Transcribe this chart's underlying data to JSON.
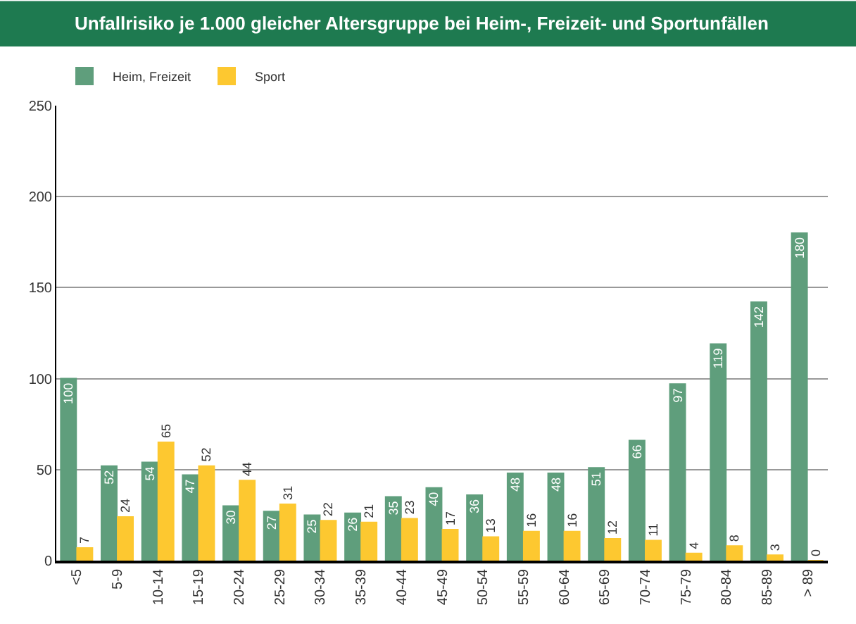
{
  "chart_data": {
    "type": "bar",
    "title": "Unfallrisiko je 1.000 gleicher Altersgruppe bei Heim-, Freizeit- und Sportunfällen",
    "categories": [
      "<5",
      "5-9",
      "10-14",
      "15-19",
      "20-24",
      "25-29",
      "30-34",
      "35-39",
      "40-44",
      "45-49",
      "50-54",
      "55-59",
      "60-64",
      "65-69",
      "70-74",
      "75-79",
      "80-84",
      "85-89",
      "> 89"
    ],
    "series": [
      {
        "name": "Heim, Freizeit",
        "color": "#5f9e7c",
        "values": [
          100,
          52,
          54,
          47,
          30,
          27,
          25,
          26,
          35,
          40,
          36,
          48,
          48,
          51,
          66,
          97,
          119,
          142,
          180
        ]
      },
      {
        "name": "Sport",
        "color": "#fdc830",
        "values": [
          7,
          24,
          65,
          52,
          44,
          31,
          22,
          21,
          23,
          17,
          13,
          16,
          16,
          12,
          11,
          4,
          8,
          3,
          0
        ]
      }
    ],
    "ylim": [
      0,
      250
    ],
    "yticks": [
      0,
      50,
      100,
      150,
      200,
      250
    ],
    "grid": "y",
    "legend": "top left",
    "data_labels": true
  }
}
